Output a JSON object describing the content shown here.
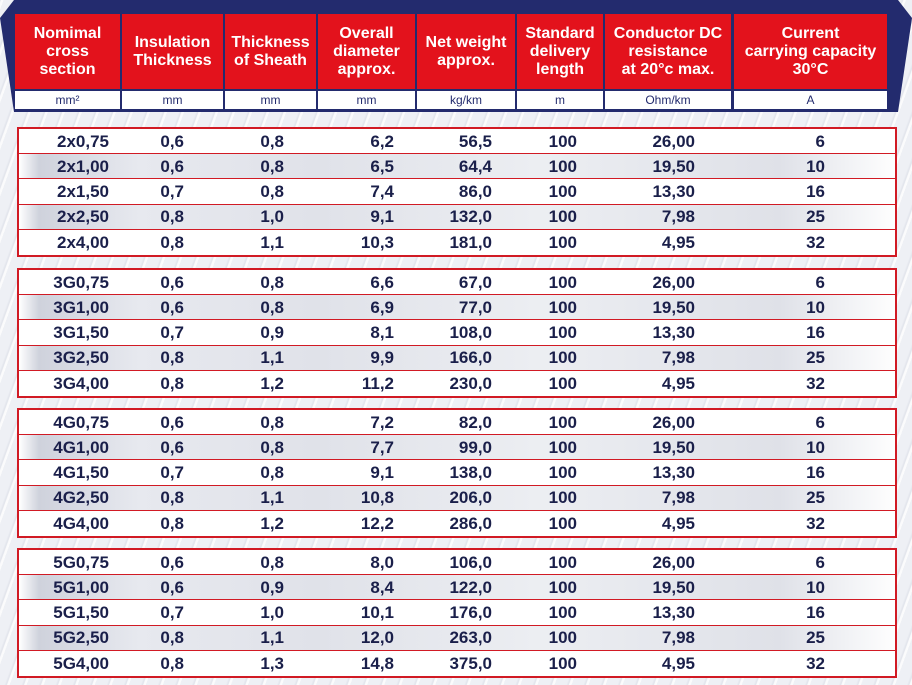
{
  "columns": [
    {
      "title": "Nomimal\ncross\nsection",
      "unit": "mm²"
    },
    {
      "title": "Insulation\nThickness",
      "unit": "mm"
    },
    {
      "title": "Thickness\nof Sheath",
      "unit": "mm"
    },
    {
      "title": "Overall\ndiameter\napprox.",
      "unit": "mm"
    },
    {
      "title": "Net weight\napprox.",
      "unit": "kg/km"
    },
    {
      "title": "Standard\ndelivery\nlength",
      "unit": "m"
    },
    {
      "title": "Conductor DC\nresistance\nat 20°c max.",
      "unit": "Ohm/km"
    },
    {
      "title": "Current\ncarrying capacity\n30°C",
      "unit": "A"
    }
  ],
  "groups": [
    {
      "rows": [
        [
          "2x0,75",
          "0,6",
          "0,8",
          "6,2",
          "56,5",
          "100",
          "26,00",
          "6"
        ],
        [
          "2x1,00",
          "0,6",
          "0,8",
          "6,5",
          "64,4",
          "100",
          "19,50",
          "10"
        ],
        [
          "2x1,50",
          "0,7",
          "0,8",
          "7,4",
          "86,0",
          "100",
          "13,30",
          "16"
        ],
        [
          "2x2,50",
          "0,8",
          "1,0",
          "9,1",
          "132,0",
          "100",
          "7,98",
          "25"
        ],
        [
          "2x4,00",
          "0,8",
          "1,1",
          "10,3",
          "181,0",
          "100",
          "4,95",
          "32"
        ]
      ]
    },
    {
      "rows": [
        [
          "3G0,75",
          "0,6",
          "0,8",
          "6,6",
          "67,0",
          "100",
          "26,00",
          "6"
        ],
        [
          "3G1,00",
          "0,6",
          "0,8",
          "6,9",
          "77,0",
          "100",
          "19,50",
          "10"
        ],
        [
          "3G1,50",
          "0,7",
          "0,9",
          "8,1",
          "108,0",
          "100",
          "13,30",
          "16"
        ],
        [
          "3G2,50",
          "0,8",
          "1,1",
          "9,9",
          "166,0",
          "100",
          "7,98",
          "25"
        ],
        [
          "3G4,00",
          "0,8",
          "1,2",
          "11,2",
          "230,0",
          "100",
          "4,95",
          "32"
        ]
      ]
    },
    {
      "rows": [
        [
          "4G0,75",
          "0,6",
          "0,8",
          "7,2",
          "82,0",
          "100",
          "26,00",
          "6"
        ],
        [
          "4G1,00",
          "0,6",
          "0,8",
          "7,7",
          "99,0",
          "100",
          "19,50",
          "10"
        ],
        [
          "4G1,50",
          "0,7",
          "0,8",
          "9,1",
          "138,0",
          "100",
          "13,30",
          "16"
        ],
        [
          "4G2,50",
          "0,8",
          "1,1",
          "10,8",
          "206,0",
          "100",
          "7,98",
          "25"
        ],
        [
          "4G4,00",
          "0,8",
          "1,2",
          "12,2",
          "286,0",
          "100",
          "4,95",
          "32"
        ]
      ]
    },
    {
      "rows": [
        [
          "5G0,75",
          "0,6",
          "0,8",
          "8,0",
          "106,0",
          "100",
          "26,00",
          "6"
        ],
        [
          "5G1,00",
          "0,6",
          "0,9",
          "8,4",
          "122,0",
          "100",
          "19,50",
          "10"
        ],
        [
          "5G1,50",
          "0,7",
          "1,0",
          "10,1",
          "176,0",
          "100",
          "13,30",
          "16"
        ],
        [
          "5G2,50",
          "0,8",
          "1,1",
          "12,0",
          "263,0",
          "100",
          "7,98",
          "25"
        ],
        [
          "5G4,00",
          "0,8",
          "1,3",
          "14,8",
          "375,0",
          "100",
          "4,95",
          "32"
        ]
      ]
    }
  ]
}
